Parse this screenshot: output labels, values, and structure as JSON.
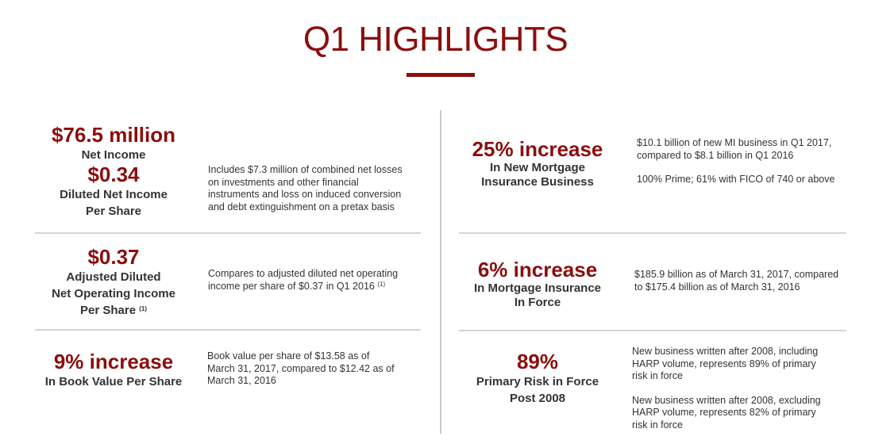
{
  "title": "Q1 HIGHLIGHTS",
  "colors": {
    "accent": "#8b0e0e",
    "text": "#333333",
    "rule": "#d4d4d4"
  },
  "left": [
    {
      "metrics": [
        {
          "value": "$76.5 million",
          "label_lines": [
            "Net Income"
          ]
        },
        {
          "value": "$0.34",
          "label_lines": [
            "Diluted Net Income",
            "Per Share"
          ]
        }
      ],
      "description": [
        "Includes $7.3 million of combined net losses",
        "on investments and other financial",
        "instruments and loss on induced conversion",
        "and debt extinguishment on a pretax basis"
      ]
    },
    {
      "metrics": [
        {
          "value": "$0.37",
          "label_lines": [
            "Adjusted Diluted",
            "Net Operating Income",
            "Per Share"
          ],
          "footnote": "(1)"
        }
      ],
      "description": [
        "Compares to adjusted diluted net operating",
        "income per share of $0.37 in Q1 2016"
      ],
      "description_footnote": "(1)"
    },
    {
      "metrics": [
        {
          "value": "9% increase",
          "label_lines": [
            "In Book Value Per Share"
          ]
        }
      ],
      "description": [
        "Book value per share of $13.58 as of",
        "March 31, 2017, compared to $12.42 as of",
        "March 31, 2016"
      ]
    }
  ],
  "right": [
    {
      "metrics": [
        {
          "value": "25% increase",
          "label_lines": [
            "In New Mortgage",
            "Insurance Business"
          ]
        }
      ],
      "description": [
        "$10.1 billion of new MI business in Q1 2017,",
        "compared to $8.1 billion in Q1 2016"
      ],
      "description2": [
        "100% Prime; 61% with FICO of 740 or above"
      ]
    },
    {
      "metrics": [
        {
          "value": "6% increase",
          "label_lines": [
            "In Mortgage Insurance",
            "In Force"
          ]
        }
      ],
      "description": [
        "$185.9 billion as of March 31, 2017, compared",
        "to $175.4 billion as of March 31, 2016"
      ]
    },
    {
      "metrics": [
        {
          "value": "89%",
          "label_lines": [
            "Primary Risk in Force",
            "Post 2008"
          ]
        }
      ],
      "description": [
        "New business written after 2008, including",
        "HARP volume, represents 89% of primary",
        "risk in force"
      ],
      "description2": [
        "New business written after 2008, excluding",
        "HARP volume, represents 82% of primary",
        "risk in force"
      ]
    }
  ]
}
